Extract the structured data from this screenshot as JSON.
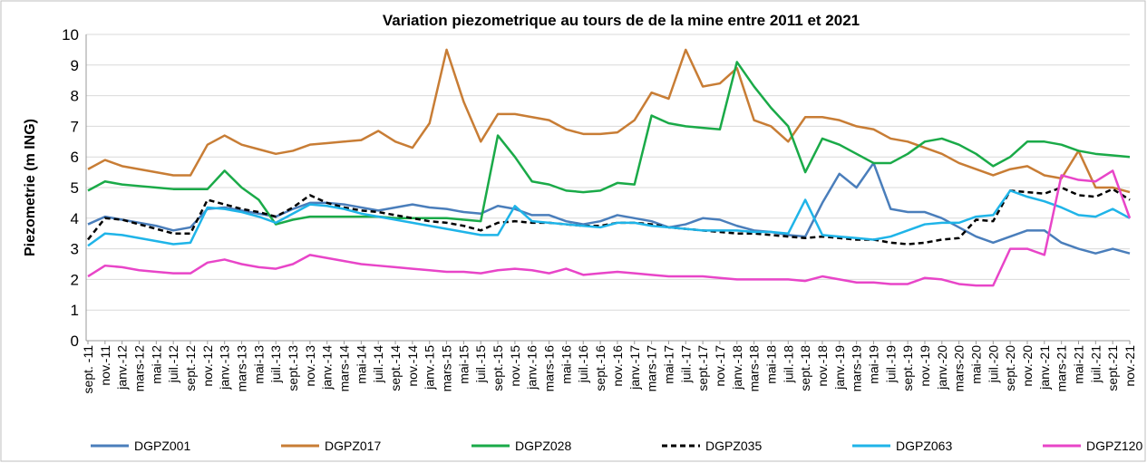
{
  "chart_data": {
    "type": "line",
    "title": "Variation piezometrique au tours de de la mine entre  2011 et 2021",
    "y_label": "Piezometrie (m  ING)",
    "categories": [
      "sept. -11",
      "nov.-11",
      "janv.-12",
      "mars-12",
      "mai-12",
      "juil.-12",
      "sept.-12",
      "nov.-12",
      "janv.-13",
      "mars-13",
      "mai-13",
      "juil.-13",
      "sept.-13",
      "nov.-13",
      "janv.-14",
      "mars-14",
      "mai-14",
      "juil.-14",
      "sept.-14",
      "nov.-14",
      "janv.-15",
      "mars-15",
      "mai-15",
      "juil.-15",
      "sept.-15",
      "nov.-15",
      "janv.-16",
      "mars-16",
      "mai-16",
      "juil.-16",
      "sept.-16",
      "nov.-16",
      "janv.-17",
      "mars-17",
      "mai-17",
      "juil.-17",
      "sept.-17",
      "nov.-17",
      "janv.-18",
      "mars-18",
      "mai-18",
      "juil.-18",
      "sept.-18",
      "nov.-18",
      "janv.-19",
      "mars-19",
      "mai-19",
      "juil.-19",
      "sept.-19",
      "nov.-19",
      "janv.-20",
      "mars-20",
      "mai-20",
      "juil.-20",
      "sept.-20",
      "nov.-20",
      "janv.-21",
      "mars-21",
      "mai-21",
      "juil.-21",
      "sept.-21",
      "nov.-21"
    ],
    "series": [
      {
        "name": "DGPZ001",
        "color": "#4a7ebb",
        "dash": false,
        "values": [
          3.8,
          4.05,
          3.95,
          3.85,
          3.75,
          3.6,
          3.7,
          4.3,
          4.35,
          4.25,
          4.15,
          4.05,
          4.3,
          4.5,
          4.5,
          4.45,
          4.35,
          4.25,
          4.35,
          4.45,
          4.35,
          4.3,
          4.2,
          4.15,
          4.4,
          4.3,
          4.1,
          4.1,
          3.9,
          3.8,
          3.9,
          4.1,
          4.0,
          3.9,
          3.7,
          3.8,
          4.0,
          3.95,
          3.75,
          3.6,
          3.55,
          3.45,
          3.4,
          4.5,
          5.45,
          5.0,
          5.8,
          4.3,
          4.2,
          4.2,
          4.0,
          3.7,
          3.4,
          3.2,
          3.4,
          3.6,
          3.6,
          3.2,
          3.0,
          2.85,
          3.0,
          2.85
        ]
      },
      {
        "name": "DGPZ017",
        "color": "#c87d35",
        "dash": false,
        "values": [
          5.6,
          5.9,
          5.7,
          5.6,
          5.5,
          5.4,
          5.4,
          6.4,
          6.7,
          6.4,
          6.25,
          6.1,
          6.2,
          6.4,
          6.45,
          6.5,
          6.55,
          6.85,
          6.5,
          6.3,
          7.1,
          9.5,
          7.8,
          6.5,
          7.4,
          7.4,
          7.3,
          7.2,
          6.9,
          6.75,
          6.75,
          6.8,
          7.2,
          8.1,
          7.9,
          9.5,
          8.3,
          8.4,
          8.9,
          7.2,
          7.0,
          6.5,
          7.3,
          7.3,
          7.2,
          7.0,
          6.9,
          6.6,
          6.5,
          6.3,
          6.1,
          5.8,
          5.6,
          5.4,
          5.6,
          5.7,
          5.4,
          5.3,
          6.2,
          5.0,
          5.0,
          4.85
        ]
      },
      {
        "name": "DGPZ028",
        "color": "#1aaa48",
        "dash": false,
        "values": [
          4.9,
          5.2,
          5.1,
          5.05,
          5.0,
          4.95,
          4.95,
          4.95,
          5.55,
          5.0,
          4.6,
          3.8,
          3.95,
          4.05,
          4.05,
          4.05,
          4.05,
          4.05,
          4.0,
          4.0,
          4.0,
          4.0,
          3.95,
          3.9,
          6.7,
          6.0,
          5.2,
          5.1,
          4.9,
          4.85,
          4.9,
          5.15,
          5.1,
          7.35,
          7.1,
          7.0,
          6.95,
          6.9,
          9.1,
          8.3,
          7.6,
          7.0,
          5.5,
          6.6,
          6.4,
          6.1,
          5.8,
          5.8,
          6.1,
          6.5,
          6.6,
          6.4,
          6.1,
          5.7,
          6.0,
          6.5,
          6.5,
          6.4,
          6.2,
          6.1,
          6.05,
          6.0
        ]
      },
      {
        "name": "DGPZ035",
        "color": "#000000",
        "dash": true,
        "values": [
          3.3,
          4.0,
          3.95,
          3.8,
          3.65,
          3.5,
          3.5,
          4.6,
          4.45,
          4.3,
          4.2,
          4.05,
          4.35,
          4.75,
          4.5,
          4.35,
          4.25,
          4.2,
          4.1,
          4.0,
          3.9,
          3.85,
          3.75,
          3.6,
          3.85,
          3.9,
          3.85,
          3.85,
          3.8,
          3.75,
          3.75,
          3.85,
          3.85,
          3.8,
          3.7,
          3.65,
          3.6,
          3.55,
          3.5,
          3.5,
          3.45,
          3.4,
          3.35,
          3.4,
          3.35,
          3.3,
          3.3,
          3.2,
          3.15,
          3.2,
          3.3,
          3.35,
          3.95,
          3.9,
          4.9,
          4.85,
          4.8,
          5.0,
          4.75,
          4.7,
          4.95,
          4.6
        ]
      },
      {
        "name": "DGPZ063",
        "color": "#1fb4e8",
        "dash": false,
        "values": [
          3.1,
          3.5,
          3.45,
          3.35,
          3.25,
          3.15,
          3.2,
          4.35,
          4.3,
          4.2,
          4.05,
          3.85,
          4.15,
          4.45,
          4.4,
          4.3,
          4.15,
          4.05,
          3.95,
          3.85,
          3.75,
          3.65,
          3.55,
          3.45,
          3.45,
          4.4,
          3.9,
          3.85,
          3.8,
          3.75,
          3.7,
          3.85,
          3.85,
          3.75,
          3.7,
          3.65,
          3.6,
          3.6,
          3.6,
          3.55,
          3.55,
          3.5,
          4.6,
          3.45,
          3.4,
          3.35,
          3.3,
          3.4,
          3.6,
          3.8,
          3.85,
          3.85,
          4.05,
          4.1,
          4.9,
          4.7,
          4.55,
          4.35,
          4.1,
          4.05,
          4.3,
          4.0
        ]
      },
      {
        "name": "DGPZ120",
        "color": "#e845c8",
        "dash": false,
        "values": [
          2.1,
          2.45,
          2.4,
          2.3,
          2.25,
          2.2,
          2.2,
          2.55,
          2.65,
          2.5,
          2.4,
          2.35,
          2.5,
          2.8,
          2.7,
          2.6,
          2.5,
          2.45,
          2.4,
          2.35,
          2.3,
          2.25,
          2.25,
          2.2,
          2.3,
          2.35,
          2.3,
          2.2,
          2.35,
          2.15,
          2.2,
          2.25,
          2.2,
          2.15,
          2.1,
          2.1,
          2.1,
          2.05,
          2.0,
          2.0,
          2.0,
          2.0,
          1.95,
          2.1,
          2.0,
          1.9,
          1.9,
          1.85,
          1.85,
          2.05,
          2.0,
          1.85,
          1.8,
          1.8,
          3.0,
          3.0,
          2.8,
          5.4,
          5.25,
          5.2,
          5.55,
          4.0
        ]
      }
    ],
    "ylim": [
      0,
      10
    ],
    "yticks": [
      0,
      1,
      2,
      3,
      4,
      5,
      6,
      7,
      8,
      9,
      10
    ],
    "grid": true,
    "legend": "bottom"
  }
}
